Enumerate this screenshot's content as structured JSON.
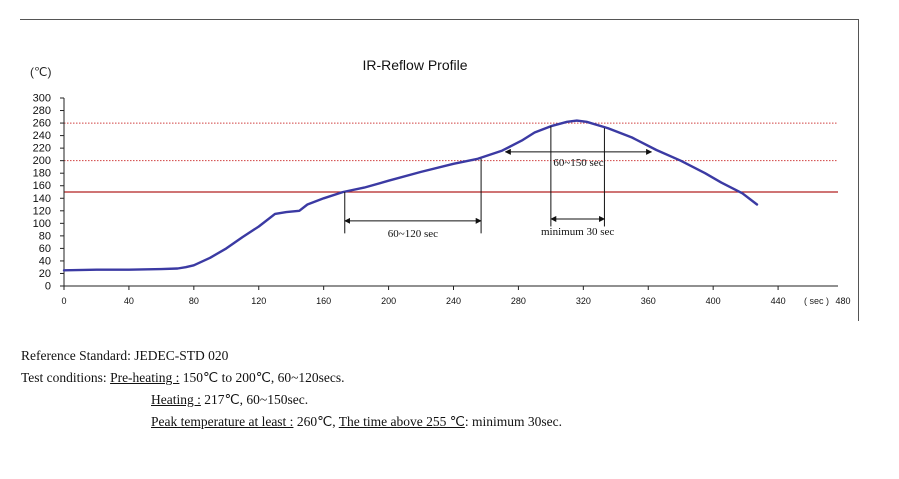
{
  "chart_data": {
    "type": "line",
    "title": "IR-Reflow Profile",
    "ylabel": "(℃)",
    "xlabel": "( sec )",
    "xlim": [
      0,
      480
    ],
    "ylim": [
      0,
      300
    ],
    "xticks": [
      0,
      40,
      80,
      120,
      160,
      200,
      240,
      280,
      320,
      360,
      400,
      440,
      480
    ],
    "yticks": [
      0,
      20,
      40,
      60,
      80,
      100,
      120,
      140,
      160,
      180,
      200,
      220,
      240,
      260,
      280,
      300
    ],
    "series": [
      {
        "name": "IR-Reflow Profile",
        "color": "#3b3aa3",
        "x": [
          0,
          20,
          40,
          60,
          70,
          75,
          80,
          90,
          100,
          110,
          120,
          130,
          137,
          145,
          150,
          160,
          172,
          185,
          200,
          220,
          240,
          255,
          270,
          282,
          290,
          300,
          310,
          316,
          322,
          335,
          350,
          365,
          380,
          395,
          405,
          418,
          427
        ],
        "y": [
          25,
          26,
          26,
          27,
          28,
          30,
          33,
          45,
          60,
          78,
          95,
          115,
          118,
          120,
          130,
          140,
          150,
          157,
          168,
          182,
          195,
          203,
          216,
          232,
          245,
          255,
          262,
          264,
          262,
          252,
          237,
          217,
          200,
          180,
          165,
          148,
          130
        ]
      }
    ],
    "reference_lines": [
      {
        "y": 150,
        "style": "solid",
        "color": "#b22222"
      },
      {
        "y": 200,
        "style": "dotted",
        "color": "#d04040"
      },
      {
        "y": 260,
        "style": "dotted",
        "color": "#d04040"
      }
    ],
    "annotations": [
      {
        "label": "60~120 sec",
        "x1": 173,
        "x2": 257,
        "y": 104
      },
      {
        "label": "60~150 sec",
        "x1": 272,
        "x2": 362,
        "y": 214
      },
      {
        "label": "minimum 30 sec",
        "x1": 300,
        "x2": 333,
        "y": 107
      }
    ]
  },
  "notes": {
    "reference": "Reference Standard: JEDEC-STD 020",
    "test_label": "Test conditions:",
    "preheat_label": "Pre-heating :",
    "preheat_value": "150℃ to 200℃,  60~120secs.",
    "heating_label": "Heating :",
    "heating_value": "217℃,  60~150sec.",
    "peak_label": "Peak temperature at least :",
    "peak_value": "260℃,",
    "time_label": "The time above  255 ℃",
    "time_value": ": minimum 30sec."
  }
}
